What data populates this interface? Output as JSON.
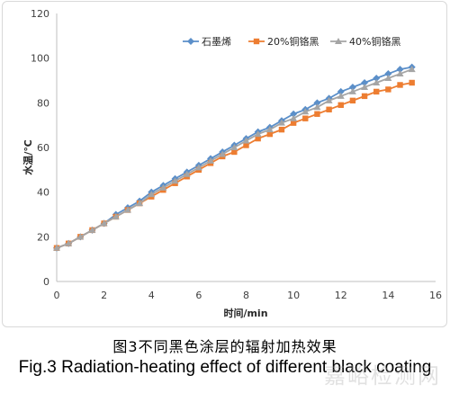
{
  "chart_data": {
    "type": "line",
    "xlabel": "时间/min",
    "ylabel": "水温/℃",
    "xlim": [
      0,
      16
    ],
    "ylim": [
      0,
      120
    ],
    "xticks": [
      "0",
      "2",
      "4",
      "6",
      "8",
      "10",
      "12",
      "14",
      "16"
    ],
    "yticks": [
      "0",
      "20",
      "40",
      "60",
      "80",
      "100",
      "120"
    ],
    "grid": false,
    "legend_position": "top-right",
    "x": [
      0,
      0.5,
      1,
      1.5,
      2,
      2.5,
      3,
      3.5,
      4,
      4.5,
      5,
      5.5,
      6,
      6.5,
      7,
      7.5,
      8,
      8.5,
      9,
      9.5,
      10,
      10.5,
      11,
      11.5,
      12,
      12.5,
      13,
      13.5,
      14,
      14.5,
      15
    ],
    "series": [
      {
        "name": "石墨烯",
        "color": "#5b8fc9",
        "marker": "diamond",
        "values": [
          15,
          17,
          20,
          23,
          26,
          30,
          33,
          36,
          40,
          43,
          46,
          49,
          52,
          55,
          58,
          61,
          64,
          67,
          69,
          72,
          75,
          77,
          80,
          82,
          85,
          87,
          89,
          91,
          93,
          95,
          96
        ]
      },
      {
        "name": "20%铜铬黑",
        "color": "#ed7d31",
        "marker": "square",
        "values": [
          15,
          17,
          20,
          23,
          26,
          29,
          32,
          35,
          38,
          41,
          44,
          47,
          50,
          53,
          56,
          58,
          61,
          64,
          66,
          68,
          71,
          73,
          75,
          77,
          79,
          81,
          83,
          85,
          86,
          88,
          89
        ]
      },
      {
        "name": "40%铜铬黑",
        "color": "#a5a5a5",
        "marker": "triangle",
        "values": [
          15,
          17,
          20,
          23,
          26,
          29,
          32,
          35,
          39,
          42,
          45,
          48,
          51,
          54,
          57,
          60,
          63,
          66,
          68,
          71,
          73,
          76,
          78,
          81,
          83,
          85,
          87,
          89,
          91,
          93,
          95
        ]
      }
    ]
  },
  "caption": {
    "cn": "图3不同黑色涂层的辐射加热效果",
    "en": "Fig.3 Radiation-heating effect of different black coating"
  },
  "watermark": "嘉峪检测网"
}
